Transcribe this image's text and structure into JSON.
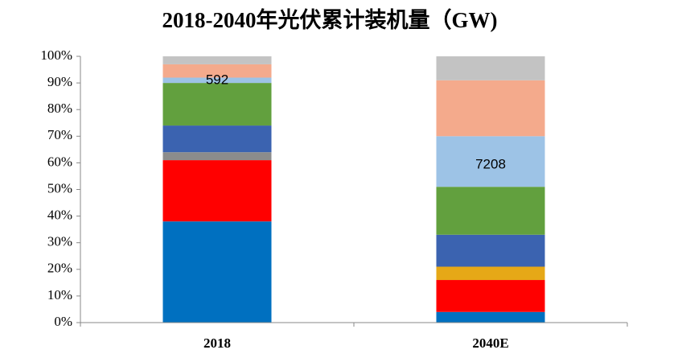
{
  "chart_data": {
    "type": "stacked-bar-100",
    "title": "2018-2040年光伏累计装机量（GW)",
    "categories": [
      "2018",
      "2040E"
    ],
    "series": [
      {
        "color": "#0070c0",
        "values": [
          38,
          4
        ]
      },
      {
        "color": "#ff0000",
        "values": [
          23,
          12
        ]
      },
      {
        "color": "#8c8c8c",
        "values": [
          3,
          0
        ]
      },
      {
        "color": "#e6a817",
        "values": [
          0,
          5
        ]
      },
      {
        "color": "#3b63b0",
        "values": [
          10,
          12
        ]
      },
      {
        "color": "#62a03e",
        "values": [
          16,
          18
        ]
      },
      {
        "color": "#9dc3e6",
        "values": [
          2,
          19
        ]
      },
      {
        "color": "#f4aa8c",
        "values": [
          5,
          21
        ]
      },
      {
        "color": "#c3c3c3",
        "values": [
          3,
          9
        ]
      }
    ],
    "totals": [
      592,
      7208
    ],
    "ylim": [
      0,
      100
    ],
    "yticks": [
      {
        "value": 0,
        "label": "0%"
      },
      {
        "value": 10,
        "label": "10%"
      },
      {
        "value": 20,
        "label": "20%"
      },
      {
        "value": 30,
        "label": "30%"
      },
      {
        "value": 40,
        "label": "40%"
      },
      {
        "value": 50,
        "label": "50%"
      },
      {
        "value": 60,
        "label": "60%"
      },
      {
        "value": 70,
        "label": "70%"
      },
      {
        "value": 80,
        "label": "80%"
      },
      {
        "value": 90,
        "label": "90%"
      },
      {
        "value": 100,
        "label": "100%"
      }
    ]
  }
}
